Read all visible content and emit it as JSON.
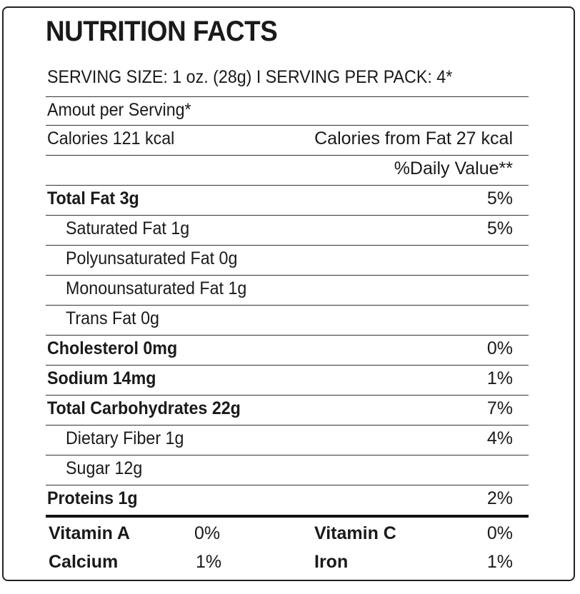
{
  "title": "NUTRITION FACTS",
  "serving_line": "SERVING SIZE: 1 oz. (28g) I SERVING PER PACK: 4*",
  "amount_per_serving": "Amout per Serving*",
  "calories": "Calories 121 kcal",
  "calories_from_fat": "Calories from Fat 27 kcal",
  "daily_value_header": "%Daily Value**",
  "nutrients": [
    {
      "label": "Total Fat 3g",
      "dv": "5%"
    },
    {
      "label": "Saturated Fat 1g",
      "dv": "5%"
    },
    {
      "label": "Polyunsaturated Fat 0g",
      "dv": ""
    },
    {
      "label": "Monounsaturated Fat 1g",
      "dv": ""
    },
    {
      "label": "Trans Fat 0g",
      "dv": ""
    },
    {
      "label": "Cholesterol 0mg",
      "dv": "0%"
    },
    {
      "label": "Sodium 14mg",
      "dv": "1%"
    },
    {
      "label": "Total Carbohydrates 22g",
      "dv": "7%"
    },
    {
      "label": "Dietary Fiber 1g",
      "dv": "4%"
    },
    {
      "label": "Sugar 12g",
      "dv": ""
    },
    {
      "label": "Proteins 1g",
      "dv": "2%"
    }
  ],
  "vitamins": [
    {
      "label": "Vitamin A",
      "dv": "0%"
    },
    {
      "label": "Vitamin C",
      "dv": "0%"
    },
    {
      "label": "Calcium",
      "dv": "1%"
    },
    {
      "label": "Iron",
      "dv": "1%"
    }
  ]
}
